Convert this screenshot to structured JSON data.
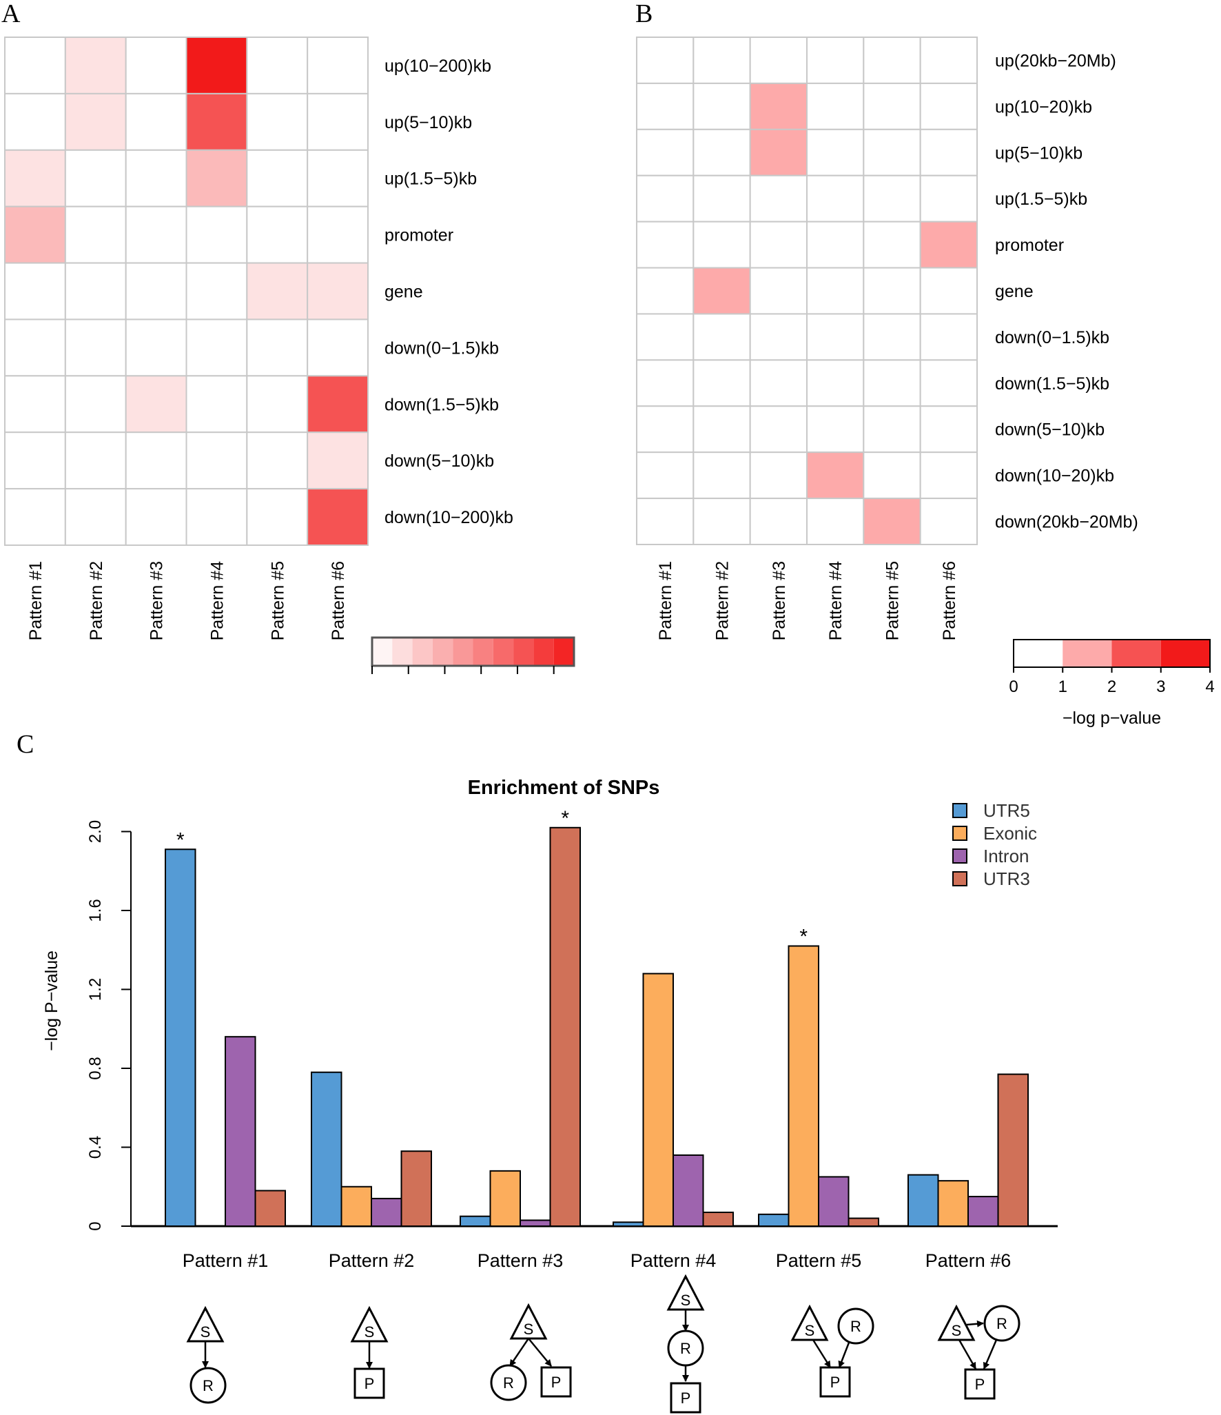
{
  "panel_labels": [
    "A",
    "B",
    "C"
  ],
  "colors": {
    "grid": "#c8c8c8",
    "heat_max": "#f21a1a",
    "utr5": "#559bd5",
    "exonic": "#fcad5c",
    "intron": "#9e64ae",
    "utr3": "#d07158",
    "axis": "#000000"
  },
  "chart_data": [
    {
      "id": "A",
      "type": "heatmap",
      "title": "",
      "columns": [
        "Pattern #1",
        "Pattern #2",
        "Pattern #3",
        "Pattern #4",
        "Pattern #5",
        "Pattern #6"
      ],
      "rows": [
        "up(10−200)kb",
        "up(5−10)kb",
        "up(1.5−5)kb",
        "promoter",
        "gene",
        "down(0−1.5)kb",
        "down(1.5−5)kb",
        "down(5−10)kb",
        "down(10−200)kb"
      ],
      "values": [
        [
          0,
          0.5,
          0,
          4.0,
          0,
          0
        ],
        [
          0,
          0.5,
          0,
          3.0,
          0,
          0
        ],
        [
          0.5,
          0,
          0,
          1.2,
          0,
          0
        ],
        [
          1.2,
          0,
          0,
          0,
          0,
          0
        ],
        [
          0,
          0,
          0,
          0,
          0.5,
          0.5
        ],
        [
          0,
          0,
          0,
          0,
          0,
          0
        ],
        [
          0,
          0,
          0.5,
          0,
          0,
          3.0
        ],
        [
          0,
          0,
          0,
          0,
          0,
          0.5
        ],
        [
          0,
          0,
          0,
          0,
          0,
          3.0
        ]
      ],
      "scale_max": 4,
      "legend_bins": 10
    },
    {
      "id": "B",
      "type": "heatmap",
      "title": "",
      "columns": [
        "Pattern #1",
        "Pattern #2",
        "Pattern #3",
        "Pattern #4",
        "Pattern #5",
        "Pattern #6"
      ],
      "rows": [
        "up(20kb−20Mb)",
        "up(10−20)kb",
        "up(5−10)kb",
        "up(1.5−5)kb",
        "promoter",
        "gene",
        "down(0−1.5)kb",
        "down(1.5−5)kb",
        "down(5−10)kb",
        "down(10−20)kb",
        "down(20kb−20Mb)"
      ],
      "values": [
        [
          0,
          0,
          0,
          0,
          0,
          0
        ],
        [
          0,
          0,
          1.5,
          0,
          0,
          0
        ],
        [
          0,
          0,
          1.5,
          0,
          0,
          0
        ],
        [
          0,
          0,
          0,
          0,
          0,
          0
        ],
        [
          0,
          0,
          0,
          0,
          0,
          1.5
        ],
        [
          0,
          1.5,
          0,
          0,
          0,
          0
        ],
        [
          0,
          0,
          0,
          0,
          0,
          0
        ],
        [
          0,
          0,
          0,
          0,
          0,
          0
        ],
        [
          0,
          0,
          0,
          0,
          0,
          0
        ],
        [
          0,
          0,
          0,
          1.5,
          0,
          0
        ],
        [
          0,
          0,
          0,
          0,
          1.5,
          0
        ]
      ],
      "legend": {
        "ticks": [
          "0",
          "1",
          "2",
          "3",
          "4"
        ],
        "label": "−log p−value",
        "bins": [
          0,
          1,
          2,
          3,
          4
        ]
      }
    },
    {
      "id": "C",
      "type": "bar",
      "title": "Enrichment of SNPs",
      "xlabel": "",
      "ylabel": "−log P−value",
      "ylim": [
        0,
        2.1
      ],
      "yticks": [
        "0",
        "0.4",
        "0.8",
        "1.2",
        "1.6",
        "2.0"
      ],
      "categories": [
        "Pattern #1",
        "Pattern #2",
        "Pattern #3",
        "Pattern #4",
        "Pattern #5",
        "Pattern #6"
      ],
      "series": [
        {
          "name": "UTR5",
          "values": [
            1.91,
            0.78,
            0.05,
            0.02,
            0.06,
            0.26
          ]
        },
        {
          "name": "Exonic",
          "values": [
            0,
            0.2,
            0.28,
            1.28,
            1.42,
            0.23
          ]
        },
        {
          "name": "Intron",
          "values": [
            0.96,
            0.14,
            0.03,
            0.36,
            0.25,
            0.15
          ]
        },
        {
          "name": "UTR3",
          "values": [
            0.18,
            0.38,
            2.02,
            0.07,
            0.04,
            0.77
          ]
        }
      ],
      "annotations": [
        {
          "category": "Pattern #1",
          "series": "UTR5",
          "text": "*"
        },
        {
          "category": "Pattern #3",
          "series": "UTR3",
          "text": "*"
        },
        {
          "category": "Pattern #5",
          "series": "Exonic",
          "text": "*"
        }
      ],
      "legend_position": "top-right"
    }
  ],
  "network_diagrams": [
    {
      "pattern": "Pattern #1",
      "labels": [
        "S",
        "R"
      ]
    },
    {
      "pattern": "Pattern #2",
      "labels": [
        "S",
        "P"
      ]
    },
    {
      "pattern": "Pattern #3",
      "labels": [
        "S",
        "R",
        "P"
      ]
    },
    {
      "pattern": "Pattern #4",
      "labels": [
        "S",
        "R",
        "P"
      ]
    },
    {
      "pattern": "Pattern #5",
      "labels": [
        "S",
        "R",
        "P"
      ]
    },
    {
      "pattern": "Pattern #6",
      "labels": [
        "S",
        "R",
        "P"
      ]
    }
  ]
}
